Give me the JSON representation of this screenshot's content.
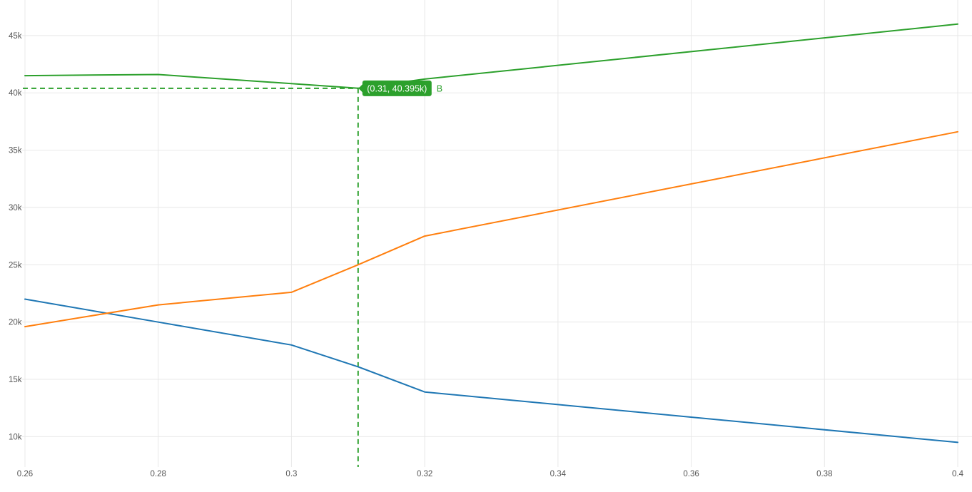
{
  "chart_data": {
    "type": "line",
    "title": "",
    "xlabel": "",
    "ylabel": "",
    "xlim": [
      0.26,
      0.4
    ],
    "ylim": [
      7.35,
      48.1
    ],
    "grid": true,
    "legend_position": "none",
    "background_color": "#ffffff",
    "grid_color": "#e8e8e8",
    "tick_color": "#555555",
    "y_unit": "k",
    "x_ticks": {
      "values": [
        0.26,
        0.28,
        0.3,
        0.32,
        0.34,
        0.36,
        0.38,
        0.4
      ],
      "labels": [
        "0.26",
        "0.28",
        "0.3",
        "0.32",
        "0.34",
        "0.36",
        "0.38",
        "0.4"
      ]
    },
    "y_ticks": {
      "values": [
        10,
        15,
        20,
        25,
        30,
        35,
        40,
        45
      ],
      "labels": [
        "10k",
        "15k",
        "20k",
        "25k",
        "30k",
        "35k",
        "40k",
        "45k"
      ]
    },
    "series": [
      {
        "name": "",
        "color": "#1f77b4",
        "x": [
          0.26,
          0.28,
          0.3,
          0.31,
          0.32,
          0.4
        ],
        "y": [
          22.0,
          20.0,
          18.0,
          16.1,
          13.9,
          9.5
        ]
      },
      {
        "name": "",
        "color": "#ff7f0e",
        "x": [
          0.26,
          0.28,
          0.3,
          0.31,
          0.32,
          0.4
        ],
        "y": [
          19.6,
          21.5,
          22.6,
          25.0,
          27.5,
          36.6
        ]
      },
      {
        "name": "B",
        "color": "#2ca02c",
        "x": [
          0.26,
          0.28,
          0.3,
          0.31,
          0.32,
          0.4
        ],
        "y": [
          41.5,
          41.6,
          40.8,
          40.395,
          41.2,
          46.0
        ]
      }
    ],
    "annotation": {
      "x": 0.31,
      "y": 40.395,
      "label": "(0.31, 40.395k)",
      "series_label": "B",
      "color": "#2ca02c",
      "text_color": "#ffffff"
    }
  }
}
